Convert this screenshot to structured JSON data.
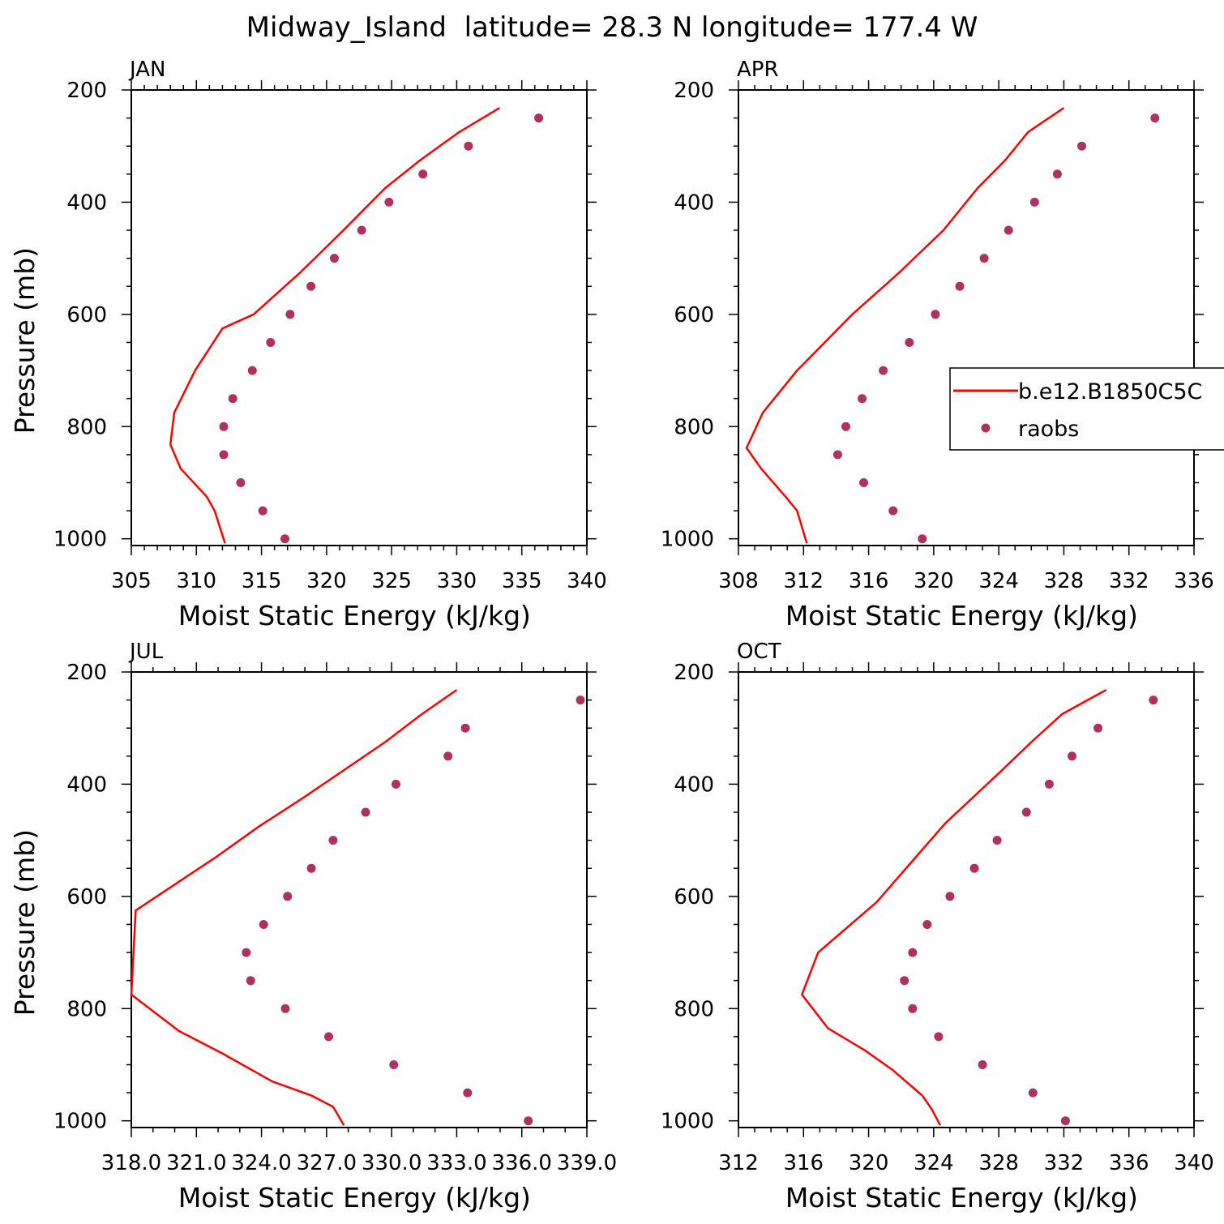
{
  "title": "Midway_Island  latitude= 28.3 N longitude= 177.4 W",
  "colors": {
    "model": "#ff0000",
    "obs": "#b03060"
  },
  "legend": {
    "entries": [
      "b.e12.B1850C5C",
      "raobs"
    ],
    "placement": "inside APR panel, center-right"
  },
  "chart_data": [
    {
      "type": "scatter",
      "label": "JAN",
      "xlabel": "Moist Static Energy (kJ/kg)",
      "ylabel": "Pressure (mb)",
      "xlim": [
        305,
        340
      ],
      "ylim": [
        1012,
        200
      ],
      "xticks": [
        305,
        310,
        315,
        320,
        325,
        330,
        335,
        340
      ],
      "xtick_labels": [
        "305",
        "310",
        "315",
        "320",
        "325",
        "330",
        "335",
        "340"
      ],
      "yticks": [
        200,
        400,
        600,
        800,
        1000
      ],
      "yminor_step": 50,
      "xminor_step": 1,
      "series": [
        {
          "name": "b.e12.B1850C5C",
          "style": "line",
          "x": [
            333.3,
            330.2,
            327.2,
            324.5,
            321.3,
            318.0,
            314.4,
            312.0,
            309.9,
            308.3,
            308.0,
            308.8,
            310.8,
            311.4,
            312.2
          ],
          "y": [
            232,
            275,
            325,
            375,
            450,
            525,
            600,
            625,
            700,
            775,
            832,
            875,
            925,
            950,
            1008
          ]
        },
        {
          "name": "raobs",
          "style": "markers",
          "x": [
            336.3,
            330.9,
            327.4,
            324.8,
            322.7,
            320.6,
            318.8,
            317.2,
            315.7,
            314.3,
            312.8,
            312.1,
            312.1,
            313.4,
            315.1,
            316.8
          ],
          "y": [
            250,
            300,
            350,
            400,
            450,
            500,
            550,
            600,
            650,
            700,
            750,
            800,
            850,
            900,
            950,
            1000
          ]
        }
      ]
    },
    {
      "type": "scatter",
      "label": "APR",
      "xlabel": "Moist Static Energy (kJ/kg)",
      "ylabel": "",
      "xlim": [
        308,
        336
      ],
      "ylim": [
        1012,
        200
      ],
      "xticks": [
        308,
        312,
        316,
        320,
        324,
        328,
        332,
        336
      ],
      "xtick_labels": [
        "308",
        "312",
        "316",
        "320",
        "324",
        "328",
        "332",
        "336"
      ],
      "yticks": [
        200,
        400,
        600,
        800,
        1000
      ],
      "yminor_step": 50,
      "xminor_step": 1,
      "series": [
        {
          "name": "b.e12.B1850C5C",
          "style": "line",
          "x": [
            328.0,
            325.8,
            324.4,
            322.7,
            320.6,
            317.9,
            315.0,
            311.6,
            309.5,
            308.5,
            309.4,
            310.9,
            311.6,
            312.2
          ],
          "y": [
            232,
            275,
            325,
            375,
            450,
            525,
            600,
            700,
            775,
            838,
            875,
            925,
            950,
            1008
          ]
        },
        {
          "name": "raobs",
          "style": "markers",
          "x": [
            333.6,
            329.1,
            327.6,
            326.2,
            324.6,
            323.1,
            321.6,
            320.1,
            318.5,
            316.9,
            315.6,
            314.6,
            314.1,
            315.7,
            317.5,
            319.3
          ],
          "y": [
            250,
            300,
            350,
            400,
            450,
            500,
            550,
            600,
            650,
            700,
            750,
            800,
            850,
            900,
            950,
            1000
          ]
        }
      ]
    },
    {
      "type": "scatter",
      "label": "JUL",
      "xlabel": "Moist Static Energy (kJ/kg)",
      "ylabel": "Pressure (mb)",
      "xlim": [
        318.0,
        339.0
      ],
      "ylim": [
        1012,
        200
      ],
      "xticks": [
        318.0,
        321.0,
        324.0,
        327.0,
        330.0,
        333.0,
        336.0,
        339.0
      ],
      "xtick_labels": [
        "318.0",
        "321.0",
        "324.0",
        "327.0",
        "330.0",
        "333.0",
        "336.0",
        "339.0"
      ],
      "yticks": [
        200,
        400,
        600,
        800,
        1000
      ],
      "yminor_step": 50,
      "xminor_step": 1,
      "series": [
        {
          "name": "b.e12.B1850C5C",
          "style": "line",
          "x": [
            333.0,
            331.4,
            329.7,
            327.8,
            325.9,
            323.9,
            321.9,
            318.2,
            318.1,
            318.0,
            320.2,
            322.2,
            324.5,
            326.3,
            327.3,
            327.8
          ],
          "y": [
            232,
            275,
            325,
            375,
            425,
            475,
            530,
            625,
            700,
            775,
            840,
            880,
            930,
            955,
            975,
            1008
          ]
        },
        {
          "name": "raobs",
          "style": "markers",
          "x": [
            338.7,
            333.4,
            332.6,
            330.2,
            328.8,
            327.3,
            326.3,
            325.2,
            324.1,
            323.3,
            323.5,
            325.1,
            327.1,
            330.1,
            333.5,
            336.3
          ],
          "y": [
            250,
            300,
            350,
            400,
            450,
            500,
            550,
            600,
            650,
            700,
            750,
            800,
            850,
            900,
            950,
            1000
          ]
        }
      ]
    },
    {
      "type": "scatter",
      "label": "OCT",
      "xlabel": "Moist Static Energy (kJ/kg)",
      "ylabel": "",
      "xlim": [
        312,
        340
      ],
      "ylim": [
        1012,
        200
      ],
      "xticks": [
        312,
        316,
        320,
        324,
        328,
        332,
        336,
        340
      ],
      "xtick_labels": [
        "312",
        "316",
        "320",
        "324",
        "328",
        "332",
        "336",
        "340"
      ],
      "yticks": [
        200,
        400,
        600,
        800,
        1000
      ],
      "yminor_step": 50,
      "xminor_step": 1,
      "series": [
        {
          "name": "b.e12.B1850C5C",
          "style": "line",
          "x": [
            334.6,
            331.9,
            330.0,
            328.2,
            324.7,
            320.5,
            316.9,
            315.9,
            317.5,
            319.8,
            321.5,
            323.3,
            323.9,
            324.4
          ],
          "y": [
            232,
            275,
            325,
            375,
            470,
            610,
            700,
            775,
            835,
            875,
            910,
            955,
            980,
            1008
          ]
        },
        {
          "name": "raobs",
          "style": "markers",
          "x": [
            337.5,
            334.1,
            332.5,
            331.1,
            329.7,
            327.9,
            326.5,
            325.0,
            323.6,
            322.7,
            322.2,
            322.7,
            324.3,
            327.0,
            330.1,
            332.1
          ],
          "y": [
            250,
            300,
            350,
            400,
            450,
            500,
            550,
            600,
            650,
            700,
            750,
            800,
            850,
            900,
            950,
            1000
          ]
        }
      ]
    }
  ]
}
